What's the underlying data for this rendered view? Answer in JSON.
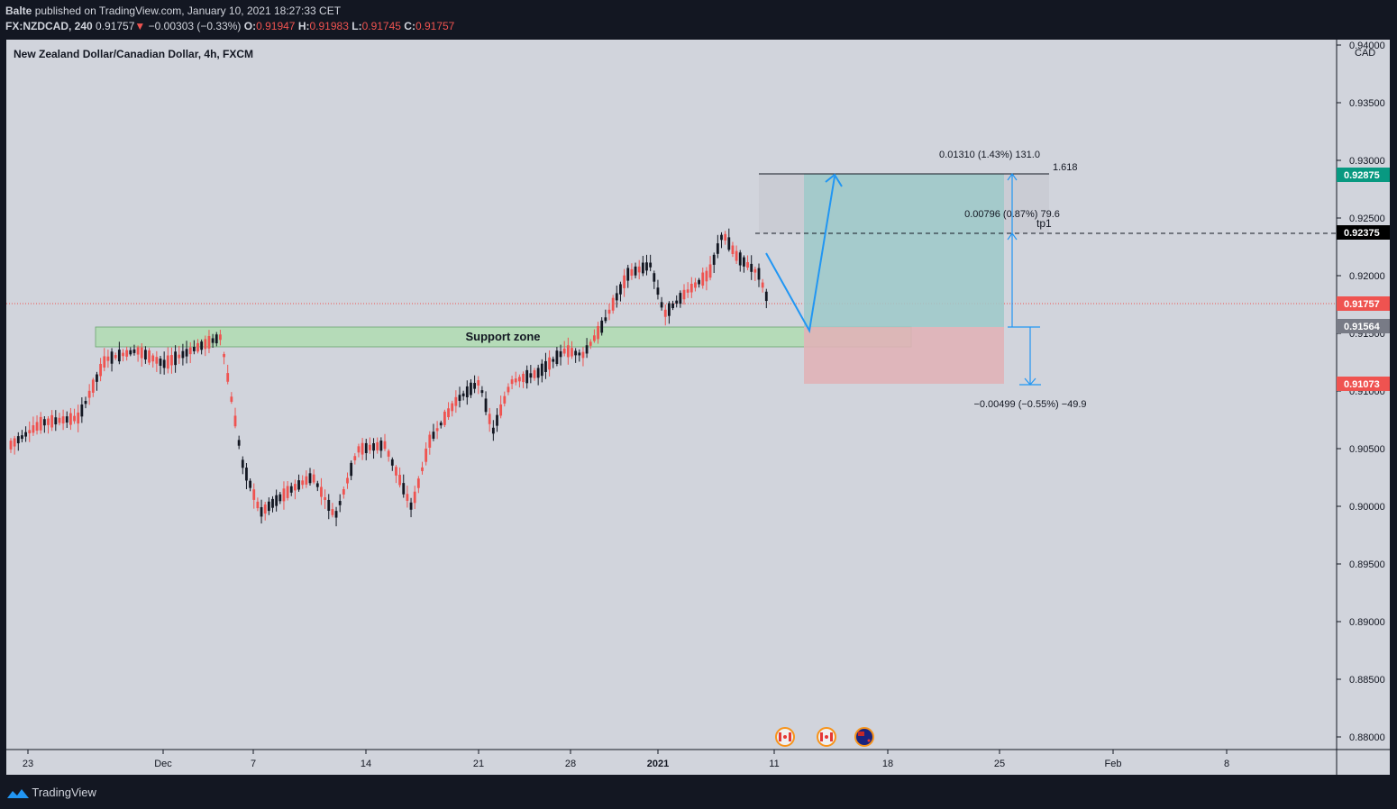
{
  "header": {
    "author": "Balte",
    "published_text": "published on TradingView.com, January 10, 2021 18:27:33 CET",
    "symbol": "FX:NZDCAD, 240",
    "last": "0.91757",
    "change_arrow": "▼",
    "change": "−0.00303 (−0.33%)",
    "o_label": "O:",
    "o": "0.91947",
    "h_label": "H:",
    "h": "0.91983",
    "l_label": "L:",
    "l": "0.91745",
    "c_label": "C:",
    "c": "0.91757"
  },
  "chart": {
    "title": "New Zealand Dollar/Canadian Dollar, 4h, FXCM",
    "currency": "CAD",
    "y_ticks": [
      "0.94000",
      "0.93500",
      "0.93000",
      "0.92500",
      "0.92000",
      "0.91500",
      "0.91000",
      "0.90500",
      "0.90000",
      "0.89500",
      "0.89000",
      "0.88500",
      "0.88000"
    ],
    "x_ticks": [
      "23",
      "Dec",
      "7",
      "14",
      "21",
      "28",
      "2021",
      "11",
      "18",
      "25",
      "Feb",
      "8"
    ],
    "price_labels": [
      {
        "text": "0.92875",
        "color": "#089981"
      },
      {
        "text": "0.92375",
        "color": "#000000"
      },
      {
        "text": "0.91757",
        "color": "#ef5350"
      },
      {
        "text": "0.91564",
        "color": "#787b86"
      },
      {
        "text": "0.91073",
        "color": "#ef5350"
      }
    ],
    "annotations": {
      "target": "0.01310 (1.43%) 131.0",
      "fib": "1.618",
      "tp_stats": "0.00796 (0.87%) 79.6",
      "tp_label": "tp1",
      "stop": "−0.00499 (−0.55%) −49.9",
      "support": "Support zone"
    },
    "event_icons": [
      "canada-flag-icon",
      "canada-flag-icon",
      "new-zealand-flag-icon"
    ],
    "colors": {
      "bg": "#d1d4dc",
      "up": "#131722",
      "down": "#ef5350",
      "profit": "#9ec9c9",
      "loss": "#e0b2b7",
      "support": "#b5dbb8",
      "arrow": "#2196f3"
    }
  },
  "footer": {
    "brand": "TradingView"
  }
}
